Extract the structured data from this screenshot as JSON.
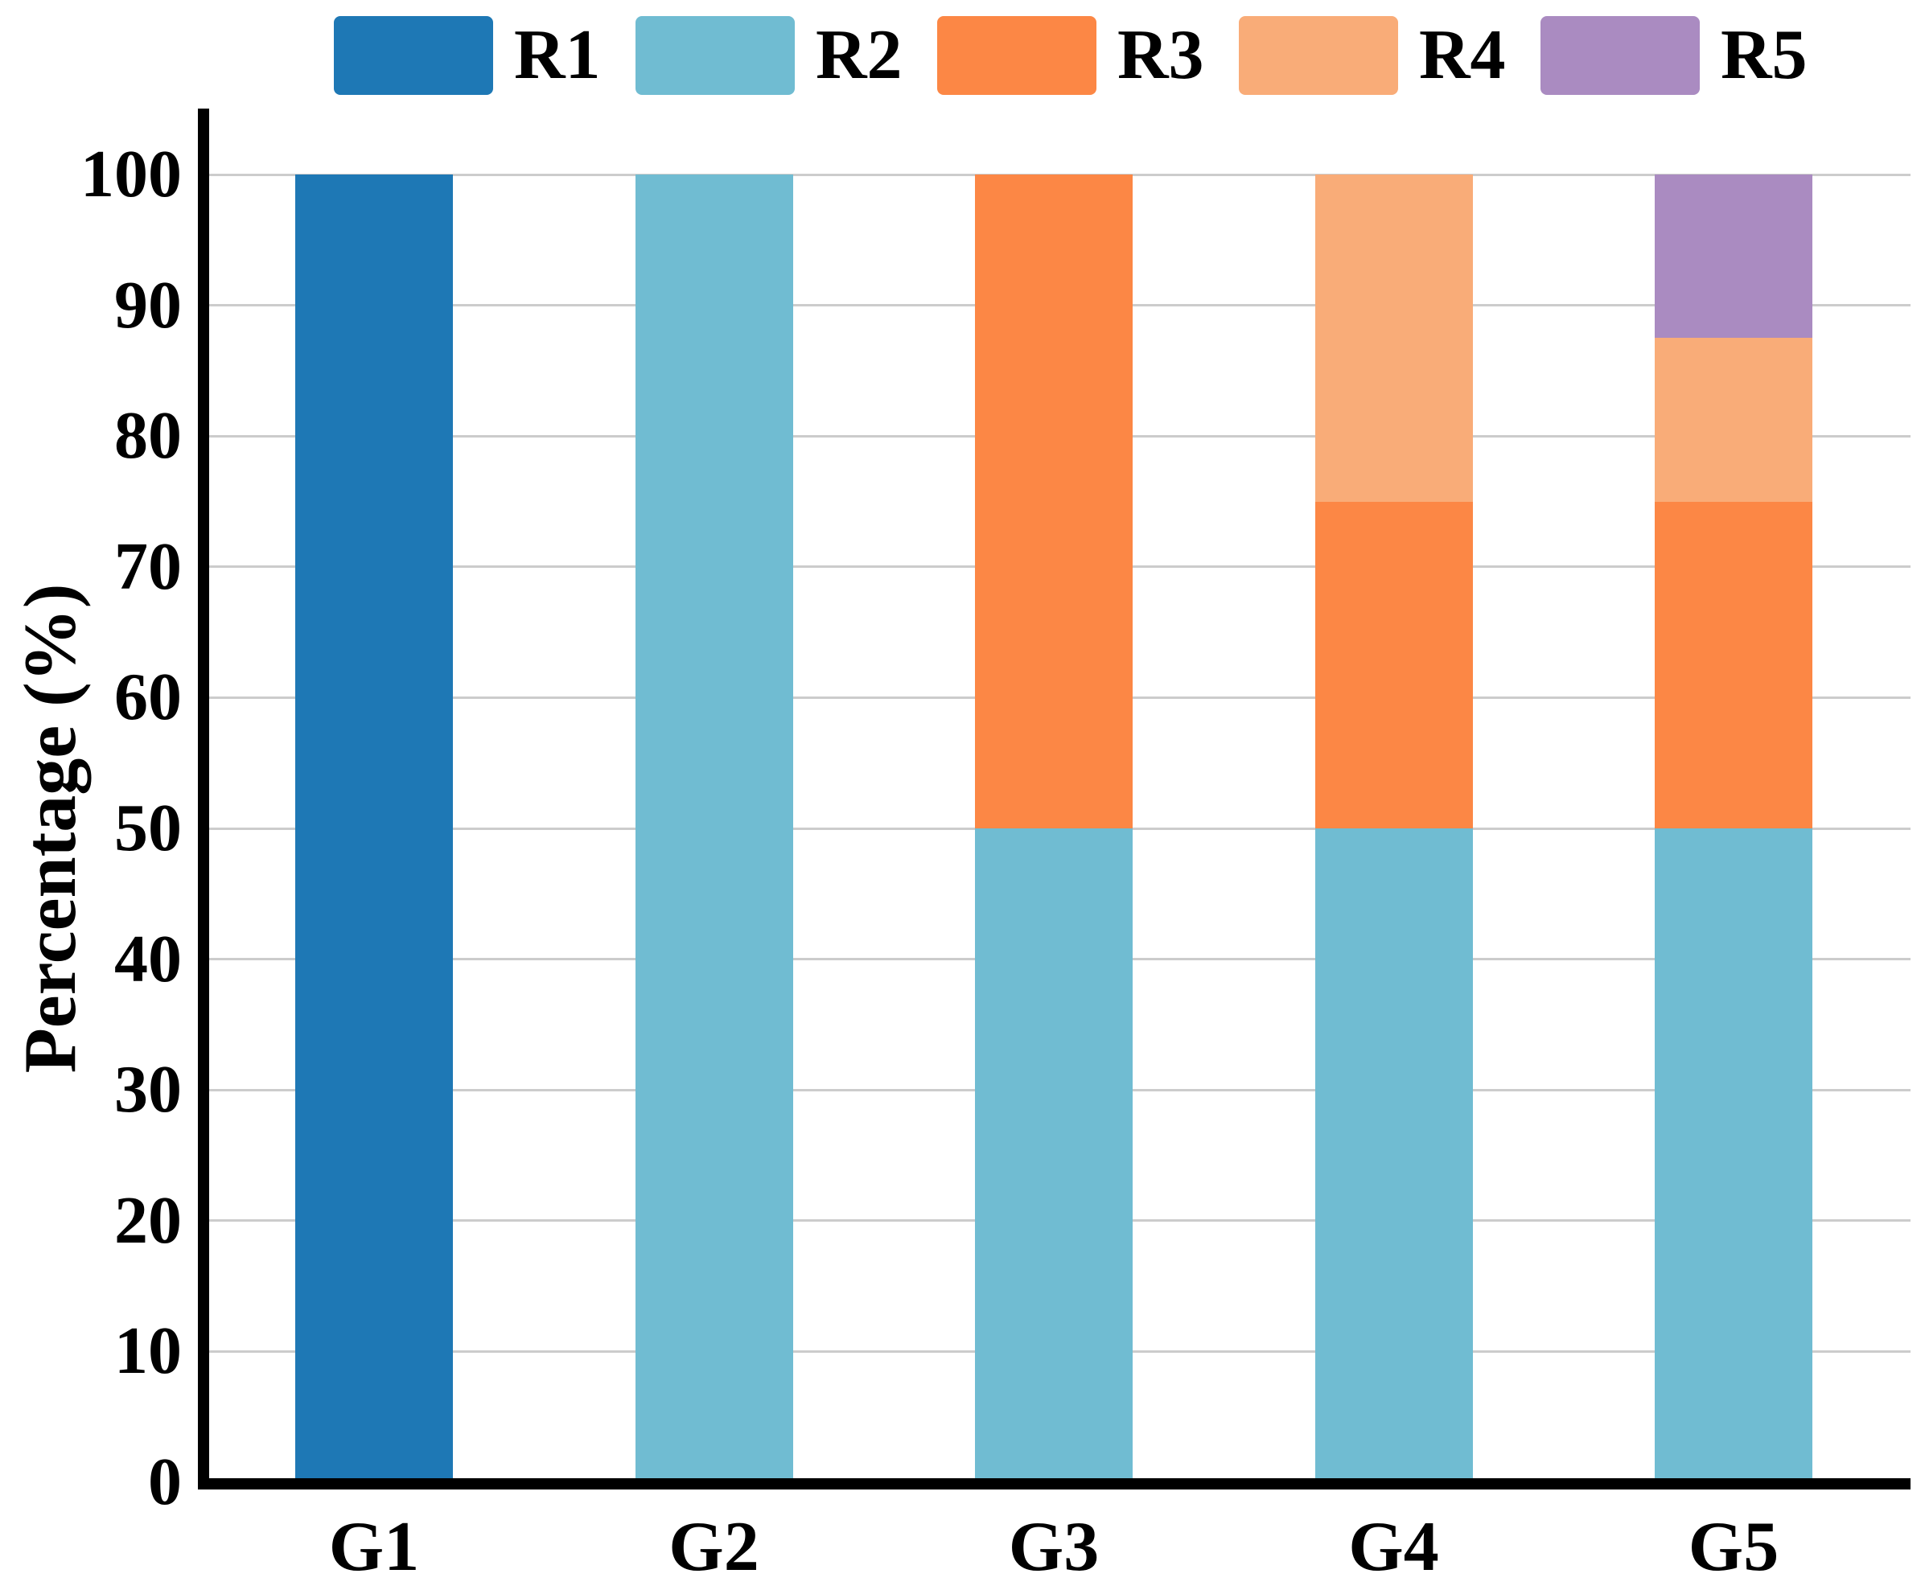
{
  "chart_data": {
    "type": "bar",
    "subtype": "stacked",
    "categories": [
      "G1",
      "G2",
      "G3",
      "G4",
      "G5"
    ],
    "series": [
      {
        "name": "R1",
        "color": "#1e78b5",
        "values": [
          100,
          0,
          0,
          0,
          0
        ]
      },
      {
        "name": "R2",
        "color": "#70bcd2",
        "values": [
          0,
          100,
          50,
          50,
          50
        ]
      },
      {
        "name": "R3",
        "color": "#fc8745",
        "values": [
          0,
          0,
          50,
          25,
          25
        ]
      },
      {
        "name": "R4",
        "color": "#f9ac78",
        "values": [
          0,
          0,
          0,
          25,
          12.5
        ]
      },
      {
        "name": "R5",
        "color": "#aa8bc1",
        "values": [
          0,
          0,
          0,
          0,
          12.5
        ]
      }
    ],
    "title": "",
    "xlabel": "",
    "ylabel": "Percentage (%)",
    "ylim": [
      0,
      100
    ],
    "yticks": [
      0,
      10,
      20,
      30,
      40,
      50,
      60,
      70,
      80,
      90,
      100
    ],
    "grid": true,
    "grid_color": "#cccccc",
    "axis_color": "#000000",
    "legend_position": "top"
  }
}
